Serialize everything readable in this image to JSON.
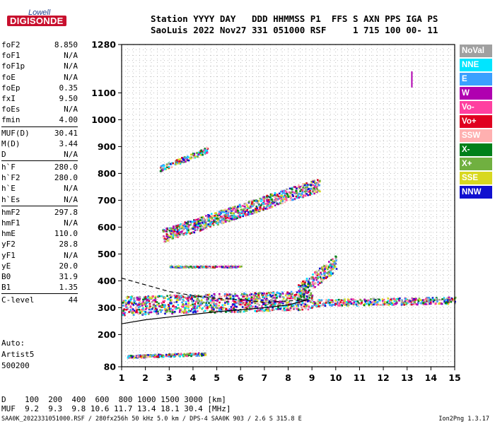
{
  "logo": {
    "line1": "Lowell",
    "line2": "DIGISONDE"
  },
  "header": {
    "line1": "Station YYYY DAY   DDD HHMMSS P1  FFS S AXN PPS IGA PS",
    "line2": "SaoLuis 2022 Nov27 331 051000 RSF     1 715 100 00- 11"
  },
  "params": [
    {
      "k": "foF2",
      "v": "8.850"
    },
    {
      "k": "foF1",
      "v": "N/A"
    },
    {
      "k": "foF1p",
      "v": "N/A"
    },
    {
      "k": "foE",
      "v": "N/A"
    },
    {
      "k": "foEp",
      "v": "0.35"
    },
    {
      "k": "fxI",
      "v": "9.50"
    },
    {
      "k": "foEs",
      "v": "N/A"
    },
    {
      "k": "fmin",
      "v": "4.00"
    },
    {
      "k": "MUF(D)",
      "v": "30.41",
      "sep": true
    },
    {
      "k": "M(D)",
      "v": "3.44"
    },
    {
      "k": "D",
      "v": "N/A"
    },
    {
      "k": "h`F",
      "v": "280.0",
      "sep": true
    },
    {
      "k": "h`F2",
      "v": "280.0"
    },
    {
      "k": "h`E",
      "v": "N/A"
    },
    {
      "k": "h`Es",
      "v": "N/A"
    },
    {
      "k": "hmF2",
      "v": "297.8",
      "sep": true
    },
    {
      "k": "hmF1",
      "v": "N/A"
    },
    {
      "k": "hmE",
      "v": "110.0"
    },
    {
      "k": "yF2",
      "v": "28.8"
    },
    {
      "k": "yF1",
      "v": "N/A"
    },
    {
      "k": "yE",
      "v": "20.0"
    },
    {
      "k": "B0",
      "v": "31.9"
    },
    {
      "k": "B1",
      "v": "1.35"
    },
    {
      "k": "C-level",
      "v": "44",
      "sep": true
    }
  ],
  "auto": {
    "line1": "Auto:",
    "line2": "Artist5",
    "line3": "500200"
  },
  "footer": {
    "d_line": "D    100  200  400  600  800 1000 1500 3000 [km]",
    "muf_line": "MUF  9.2  9.3  9.8 10.6 11.7 13.4 18.1 30.4 [MHz]",
    "file_line": "SAA0K_2022331051000.RSF / 280fx256h 50 kHz 5.0 km / DPS-4 SAA0K 903 / 2.6 S 315.8 E",
    "version": "Ion2Png 1.3.17"
  },
  "legend": [
    {
      "label": "NoVal",
      "color": "#a0a0a0"
    },
    {
      "label": "NNE",
      "color": "#00e5ff"
    },
    {
      "label": "E",
      "color": "#3aa0ff"
    },
    {
      "label": "W",
      "color": "#b000b0"
    },
    {
      "label": "Vo-",
      "color": "#ff40a0"
    },
    {
      "label": "Vo+",
      "color": "#e00020"
    },
    {
      "label": "SSW",
      "color": "#ffb0b0"
    },
    {
      "label": "X-",
      "color": "#00801a"
    },
    {
      "label": "X+",
      "color": "#70b040"
    },
    {
      "label": "SSE",
      "color": "#d8d820"
    },
    {
      "label": "NNW",
      "color": "#1010d0"
    }
  ],
  "chart_data": {
    "type": "scatter",
    "xlim": [
      1,
      15
    ],
    "ylim": [
      80,
      1280
    ],
    "xticks": [
      1,
      2,
      3,
      4,
      5,
      6,
      7,
      8,
      9,
      10,
      11,
      12,
      13,
      14,
      15
    ],
    "yticks": [
      80,
      200,
      300,
      400,
      500,
      600,
      700,
      800,
      900,
      1000,
      1100,
      1280
    ],
    "grid": true,
    "legend_placement": "right",
    "traces": [
      {
        "x0": 1.0,
        "y0": 310,
        "x1": 9.0,
        "y1": 330,
        "spread": 70
      },
      {
        "x0": 9.0,
        "y0": 320,
        "x1": 15.0,
        "y1": 330,
        "spread": 25
      },
      {
        "x0": 8.4,
        "y0": 360,
        "x1": 10.0,
        "y1": 470,
        "spread": 60
      },
      {
        "x0": 2.7,
        "y0": 570,
        "x1": 9.3,
        "y1": 760,
        "spread": 50
      },
      {
        "x0": 2.6,
        "y0": 820,
        "x1": 4.6,
        "y1": 890,
        "spread": 20
      },
      {
        "x0": 1.2,
        "y0": 120,
        "x1": 4.5,
        "y1": 130,
        "spread": 10
      },
      {
        "x0": 3.0,
        "y0": 455,
        "x1": 6.0,
        "y1": 455,
        "spread": 5
      }
    ],
    "profile_curve": {
      "x": [
        1.0,
        2.0,
        3.0,
        4.0,
        5.0,
        6.0,
        7.0,
        8.0,
        8.85
      ],
      "y": [
        240,
        255,
        265,
        275,
        285,
        292,
        300,
        310,
        330
      ]
    },
    "dashed_curve": {
      "x": [
        1.0,
        2.0,
        3.0,
        4.0,
        5.0,
        6.0,
        7.0,
        8.0,
        8.85
      ],
      "y": [
        410,
        385,
        360,
        345,
        335,
        330,
        320,
        325,
        330
      ]
    },
    "marker": {
      "x": 13.2,
      "y0": 1120,
      "y1": 1180
    }
  }
}
